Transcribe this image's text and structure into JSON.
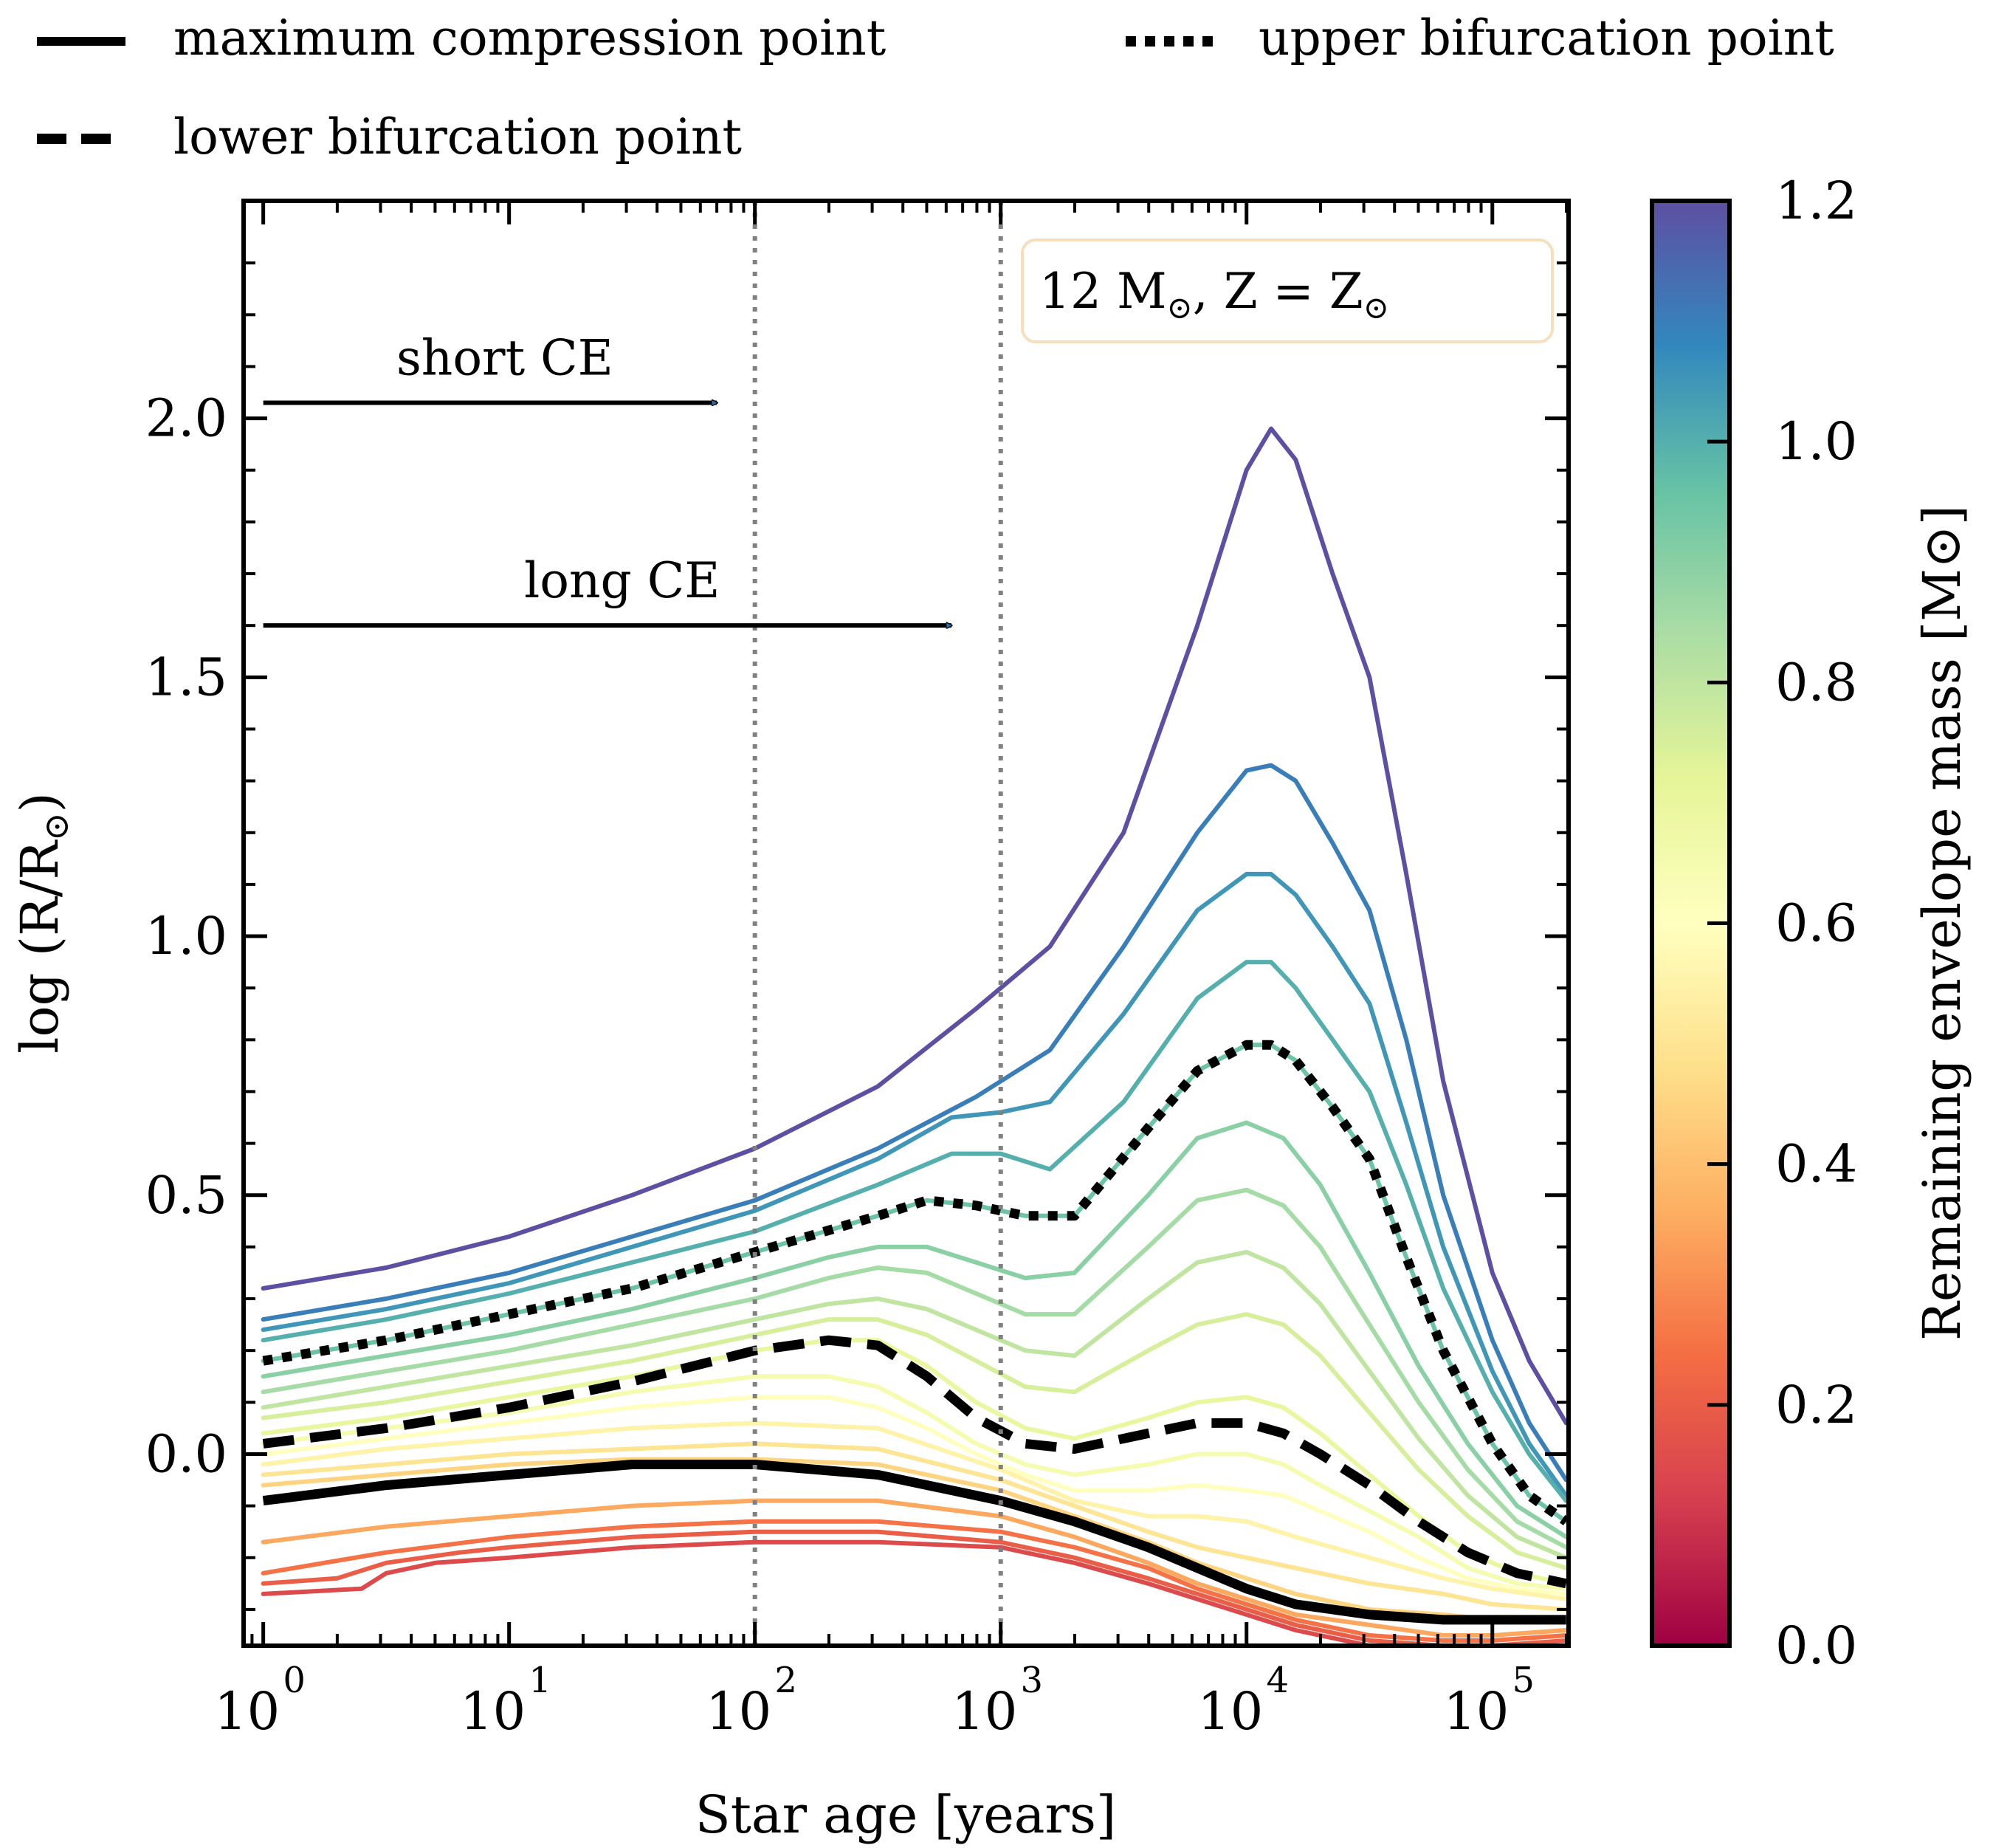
{
  "chart_data": {
    "type": "line",
    "title": "",
    "xlabel": "Star age [years]",
    "ylabel": "log (R/R⊙)",
    "xscale": "log",
    "xlim_log10": [
      -0.08,
      5.31
    ],
    "ylim": [
      -0.37,
      2.42
    ],
    "yticks": [
      0.0,
      0.5,
      1.0,
      1.5,
      2.0
    ],
    "ytick_labels": [
      "0.0",
      "0.5",
      "1.0",
      "1.5",
      "2.0"
    ],
    "xtick_log10": [
      0,
      1,
      2,
      3,
      4,
      5
    ],
    "xtick_labels": [
      "10",
      "10",
      "10",
      "10",
      "10",
      "10"
    ],
    "xtick_exponents": [
      "0",
      "1",
      "2",
      "3",
      "4",
      "5"
    ],
    "annotation_box": {
      "mass_text": "12 M",
      "comma_z_text": ", Z = Z",
      "sun_symbol": "⊙"
    },
    "vlines_years": [
      100,
      1000
    ],
    "arrows": [
      {
        "label": "short CE",
        "y": 2.03,
        "x_end_years": 70
      },
      {
        "label": "long CE",
        "y": 1.6,
        "x_end_years": 630
      }
    ],
    "legend": {
      "placement": "top, outside axes",
      "items": [
        {
          "style": "solid",
          "label": "maximum compression point"
        },
        {
          "style": "dotted",
          "label": "upper bifurcation point"
        },
        {
          "style": "dashed",
          "label": "lower bifurcation point"
        }
      ]
    },
    "colorbar": {
      "label": "Remaining envelope mass [M⊙]",
      "range": [
        0.0,
        1.2
      ],
      "ticks": [
        0.0,
        0.2,
        0.4,
        0.6,
        0.8,
        1.0,
        1.2
      ],
      "tick_labels": [
        "0.0",
        "0.2",
        "0.4",
        "0.6",
        "0.8",
        "1.0",
        "1.2"
      ],
      "colormap": "Spectral",
      "color_stops": [
        "#9e0142",
        "#d53e4f",
        "#f46d43",
        "#fdae61",
        "#fee08b",
        "#ffffbf",
        "#e6f598",
        "#abdda4",
        "#66c2a5",
        "#3288bd",
        "#5e4fa2"
      ]
    },
    "series": [
      {
        "mass": 1.2,
        "x_log10": [
          0,
          0.5,
          1,
          1.5,
          2,
          2.5,
          2.9,
          3.2,
          3.5,
          3.8,
          4.0,
          4.1,
          4.2,
          4.35,
          4.5,
          4.65,
          4.8,
          5,
          5.15,
          5.3
        ],
        "y": [
          0.32,
          0.36,
          0.42,
          0.5,
          0.59,
          0.71,
          0.86,
          0.98,
          1.2,
          1.6,
          1.9,
          1.98,
          1.92,
          1.7,
          1.5,
          1.12,
          0.72,
          0.35,
          0.18,
          0.06
        ]
      },
      {
        "mass": 1.1,
        "x_log10": [
          0,
          0.5,
          1,
          1.5,
          2,
          2.5,
          2.9,
          3.2,
          3.5,
          3.8,
          4.0,
          4.1,
          4.2,
          4.35,
          4.5,
          4.65,
          4.8,
          5,
          5.15,
          5.3
        ],
        "y": [
          0.26,
          0.3,
          0.35,
          0.42,
          0.49,
          0.59,
          0.69,
          0.78,
          0.98,
          1.2,
          1.32,
          1.33,
          1.3,
          1.18,
          1.05,
          0.8,
          0.5,
          0.22,
          0.06,
          -0.05
        ]
      },
      {
        "mass": 1.05,
        "x_log10": [
          0,
          0.5,
          1,
          1.5,
          2,
          2.5,
          2.8,
          3.0,
          3.2,
          3.5,
          3.8,
          4.0,
          4.1,
          4.2,
          4.35,
          4.5,
          4.65,
          4.8,
          5,
          5.15,
          5.3
        ],
        "y": [
          0.24,
          0.28,
          0.33,
          0.4,
          0.47,
          0.57,
          0.65,
          0.66,
          0.68,
          0.85,
          1.05,
          1.12,
          1.12,
          1.08,
          0.98,
          0.87,
          0.64,
          0.4,
          0.16,
          0.02,
          -0.08
        ]
      },
      {
        "mass": 1.0,
        "x_log10": [
          0,
          0.5,
          1,
          1.5,
          2,
          2.5,
          2.8,
          3.0,
          3.2,
          3.5,
          3.8,
          4.0,
          4.1,
          4.2,
          4.35,
          4.5,
          4.65,
          4.8,
          5,
          5.15,
          5.3
        ],
        "y": [
          0.22,
          0.26,
          0.31,
          0.37,
          0.43,
          0.52,
          0.58,
          0.58,
          0.55,
          0.68,
          0.88,
          0.95,
          0.95,
          0.9,
          0.8,
          0.7,
          0.52,
          0.32,
          0.12,
          0.0,
          -0.09
        ]
      },
      {
        "mass": 0.95,
        "x_log10": [
          0,
          0.5,
          1,
          1.5,
          2,
          2.5,
          2.7,
          2.9,
          3.1,
          3.3,
          3.6,
          3.8,
          4.0,
          4.1,
          4.2,
          4.35,
          4.5,
          4.65,
          4.8,
          5,
          5.15,
          5.3
        ],
        "y": [
          0.18,
          0.22,
          0.27,
          0.32,
          0.39,
          0.46,
          0.49,
          0.48,
          0.46,
          0.46,
          0.63,
          0.74,
          0.79,
          0.79,
          0.76,
          0.67,
          0.57,
          0.38,
          0.2,
          0.02,
          -0.08,
          -0.13
        ]
      },
      {
        "mass": 0.9,
        "x_log10": [
          0,
          0.5,
          1,
          1.5,
          2,
          2.3,
          2.5,
          2.7,
          2.9,
          3.1,
          3.3,
          3.6,
          3.8,
          4.0,
          4.15,
          4.3,
          4.5,
          4.7,
          4.9,
          5.1,
          5.3
        ],
        "y": [
          0.15,
          0.19,
          0.23,
          0.28,
          0.34,
          0.38,
          0.4,
          0.4,
          0.37,
          0.34,
          0.35,
          0.5,
          0.61,
          0.64,
          0.61,
          0.52,
          0.35,
          0.17,
          0.02,
          -0.1,
          -0.16
        ]
      },
      {
        "mass": 0.85,
        "x_log10": [
          0,
          0.5,
          1,
          1.5,
          2,
          2.3,
          2.5,
          2.7,
          2.9,
          3.1,
          3.3,
          3.6,
          3.8,
          4.0,
          4.15,
          4.3,
          4.5,
          4.7,
          4.9,
          5.1,
          5.3
        ],
        "y": [
          0.12,
          0.16,
          0.2,
          0.25,
          0.3,
          0.34,
          0.36,
          0.35,
          0.31,
          0.27,
          0.27,
          0.4,
          0.49,
          0.51,
          0.48,
          0.4,
          0.25,
          0.1,
          -0.03,
          -0.13,
          -0.18
        ]
      },
      {
        "mass": 0.8,
        "x_log10": [
          0,
          0.5,
          1,
          1.5,
          2,
          2.3,
          2.5,
          2.7,
          2.9,
          3.1,
          3.3,
          3.6,
          3.8,
          4.0,
          4.15,
          4.3,
          4.5,
          4.7,
          4.9,
          5.1,
          5.3
        ],
        "y": [
          0.09,
          0.13,
          0.17,
          0.21,
          0.26,
          0.29,
          0.3,
          0.28,
          0.24,
          0.2,
          0.19,
          0.3,
          0.37,
          0.39,
          0.36,
          0.29,
          0.16,
          0.03,
          -0.08,
          -0.16,
          -0.2
        ]
      },
      {
        "mass": 0.75,
        "x_log10": [
          0,
          0.5,
          1,
          1.5,
          2,
          2.3,
          2.5,
          2.7,
          2.9,
          3.1,
          3.3,
          3.6,
          3.8,
          4.0,
          4.15,
          4.3,
          4.5,
          4.7,
          4.9,
          5.1,
          5.3
        ],
        "y": [
          0.07,
          0.1,
          0.14,
          0.18,
          0.23,
          0.26,
          0.26,
          0.23,
          0.18,
          0.13,
          0.12,
          0.2,
          0.25,
          0.27,
          0.25,
          0.19,
          0.08,
          -0.03,
          -0.12,
          -0.19,
          -0.22
        ]
      },
      {
        "mass": 0.7,
        "x_log10": [
          0,
          0.5,
          1,
          1.5,
          2,
          2.3,
          2.5,
          2.7,
          2.9,
          3.1,
          3.3,
          3.6,
          3.8,
          4.0,
          4.15,
          4.3,
          4.5,
          4.7,
          4.9,
          5.1,
          5.3
        ],
        "y": [
          0.04,
          0.07,
          0.11,
          0.15,
          0.2,
          0.22,
          0.22,
          0.17,
          0.1,
          0.05,
          0.03,
          0.07,
          0.1,
          0.11,
          0.09,
          0.04,
          -0.04,
          -0.12,
          -0.19,
          -0.23,
          -0.25
        ]
      },
      {
        "mass": 0.65,
        "x_log10": [
          0,
          0.5,
          1,
          1.5,
          2,
          2.3,
          2.5,
          2.7,
          2.9,
          3.1,
          3.3,
          3.6,
          3.8,
          4.0,
          4.15,
          4.3,
          4.5,
          4.7,
          4.9,
          5.1,
          5.3
        ],
        "y": [
          0.02,
          0.05,
          0.08,
          0.12,
          0.15,
          0.15,
          0.13,
          0.08,
          0.02,
          -0.02,
          -0.04,
          -0.02,
          0.0,
          0.0,
          -0.02,
          -0.06,
          -0.11,
          -0.16,
          -0.22,
          -0.25,
          -0.26
        ]
      },
      {
        "mass": 0.6,
        "x_log10": [
          0,
          0.5,
          1,
          1.5,
          2,
          2.3,
          2.5,
          2.7,
          2.9,
          3.1,
          3.3,
          3.6,
          3.8,
          4.0,
          4.15,
          4.3,
          4.5,
          4.7,
          4.9,
          5.1,
          5.3
        ],
        "y": [
          0.0,
          0.03,
          0.06,
          0.09,
          0.11,
          0.11,
          0.09,
          0.05,
          0.0,
          -0.04,
          -0.07,
          -0.07,
          -0.06,
          -0.07,
          -0.08,
          -0.11,
          -0.15,
          -0.2,
          -0.24,
          -0.26,
          -0.27
        ]
      },
      {
        "mass": 0.55,
        "x_log10": [
          0,
          0.5,
          1,
          1.5,
          2,
          2.5,
          3.0,
          3.3,
          3.6,
          3.8,
          4.0,
          4.2,
          4.5,
          4.8,
          5.0,
          5.3
        ],
        "y": [
          -0.02,
          0.01,
          0.03,
          0.05,
          0.06,
          0.05,
          -0.03,
          -0.09,
          -0.12,
          -0.12,
          -0.13,
          -0.16,
          -0.2,
          -0.24,
          -0.26,
          -0.28
        ]
      },
      {
        "mass": 0.5,
        "x_log10": [
          0,
          0.5,
          1,
          1.5,
          2,
          2.5,
          3.0,
          3.3,
          3.6,
          3.8,
          4.0,
          4.2,
          4.5,
          4.8,
          5.0,
          5.3
        ],
        "y": [
          -0.04,
          -0.02,
          0.0,
          0.01,
          0.02,
          0.01,
          -0.05,
          -0.1,
          -0.15,
          -0.18,
          -0.2,
          -0.22,
          -0.25,
          -0.27,
          -0.29,
          -0.3
        ]
      },
      {
        "mass": 0.45,
        "x_log10": [
          0,
          0.5,
          1,
          1.5,
          2,
          2.5,
          3.0,
          3.3,
          3.6,
          3.8,
          4.0,
          4.2,
          4.5,
          4.8,
          5.0,
          5.3
        ],
        "y": [
          -0.06,
          -0.04,
          -0.02,
          -0.01,
          -0.01,
          -0.02,
          -0.07,
          -0.12,
          -0.17,
          -0.21,
          -0.24,
          -0.27,
          -0.3,
          -0.31,
          -0.32,
          -0.32
        ]
      },
      {
        "mass": 0.35,
        "x_log10": [
          0,
          0.5,
          1,
          1.5,
          2,
          2.5,
          3.0,
          3.3,
          3.6,
          3.8,
          4.0,
          4.2,
          4.5,
          4.8,
          5.0,
          5.3
        ],
        "y": [
          -0.17,
          -0.14,
          -0.12,
          -0.1,
          -0.09,
          -0.09,
          -0.12,
          -0.16,
          -0.21,
          -0.25,
          -0.28,
          -0.31,
          -0.33,
          -0.35,
          -0.35,
          -0.34
        ]
      },
      {
        "mass": 0.25,
        "x_log10": [
          0,
          0.5,
          1,
          1.5,
          2,
          2.5,
          3.0,
          3.3,
          3.6,
          3.8,
          4.0,
          4.2,
          4.5,
          4.8,
          5.0,
          5.3
        ],
        "y": [
          -0.23,
          -0.19,
          -0.16,
          -0.14,
          -0.13,
          -0.13,
          -0.15,
          -0.18,
          -0.22,
          -0.26,
          -0.29,
          -0.32,
          -0.35,
          -0.36,
          -0.36,
          -0.35
        ]
      },
      {
        "mass": 0.2,
        "x_log10": [
          0,
          0.3,
          0.5,
          0.8,
          1,
          1.5,
          2,
          2.5,
          3.0,
          3.3,
          3.6,
          3.8,
          4.0,
          4.2,
          4.5,
          4.8,
          5.0,
          5.3
        ],
        "y": [
          -0.25,
          -0.24,
          -0.21,
          -0.19,
          -0.18,
          -0.16,
          -0.15,
          -0.15,
          -0.17,
          -0.2,
          -0.24,
          -0.27,
          -0.3,
          -0.33,
          -0.36,
          -0.37,
          -0.37,
          -0.36
        ]
      },
      {
        "mass": 0.15,
        "x_log10": [
          0,
          0.4,
          0.5,
          0.7,
          1,
          1.5,
          2,
          2.5,
          3.0,
          3.3,
          3.6,
          3.8,
          4.0,
          4.2,
          4.5,
          4.8,
          5.0,
          5.3
        ],
        "y": [
          -0.27,
          -0.26,
          -0.23,
          -0.21,
          -0.2,
          -0.18,
          -0.17,
          -0.17,
          -0.18,
          -0.21,
          -0.25,
          -0.28,
          -0.31,
          -0.34,
          -0.37,
          -0.38,
          -0.38,
          -0.37
        ]
      }
    ],
    "special_curves": [
      {
        "style": "solid",
        "label": "maximum compression point",
        "x_log10": [
          0,
          0.5,
          1,
          1.5,
          2,
          2.5,
          3.0,
          3.3,
          3.6,
          3.8,
          4.0,
          4.2,
          4.5,
          4.8,
          5.0,
          5.3
        ],
        "y": [
          -0.09,
          -0.06,
          -0.04,
          -0.02,
          -0.02,
          -0.04,
          -0.09,
          -0.13,
          -0.18,
          -0.22,
          -0.26,
          -0.29,
          -0.31,
          -0.32,
          -0.32,
          -0.32
        ]
      },
      {
        "style": "dotted",
        "label": "upper bifurcation point",
        "x_log10": [
          0,
          0.5,
          1,
          1.5,
          2,
          2.5,
          2.7,
          2.9,
          3.1,
          3.3,
          3.6,
          3.8,
          4.0,
          4.1,
          4.2,
          4.35,
          4.5,
          4.65,
          4.8,
          5,
          5.15,
          5.3
        ],
        "y": [
          0.18,
          0.22,
          0.27,
          0.32,
          0.39,
          0.46,
          0.49,
          0.48,
          0.46,
          0.46,
          0.63,
          0.74,
          0.79,
          0.79,
          0.76,
          0.67,
          0.57,
          0.38,
          0.2,
          0.02,
          -0.08,
          -0.13
        ]
      },
      {
        "style": "dashed",
        "label": "lower bifurcation point",
        "x_log10": [
          0,
          0.5,
          1,
          1.5,
          2,
          2.3,
          2.5,
          2.7,
          2.9,
          3.1,
          3.3,
          3.6,
          3.8,
          4.0,
          4.15,
          4.3,
          4.5,
          4.7,
          4.9,
          5.1,
          5.3
        ],
        "y": [
          0.02,
          0.05,
          0.09,
          0.14,
          0.2,
          0.22,
          0.21,
          0.15,
          0.07,
          0.02,
          0.01,
          0.04,
          0.06,
          0.06,
          0.04,
          0.0,
          -0.06,
          -0.13,
          -0.19,
          -0.23,
          -0.25
        ]
      }
    ]
  }
}
